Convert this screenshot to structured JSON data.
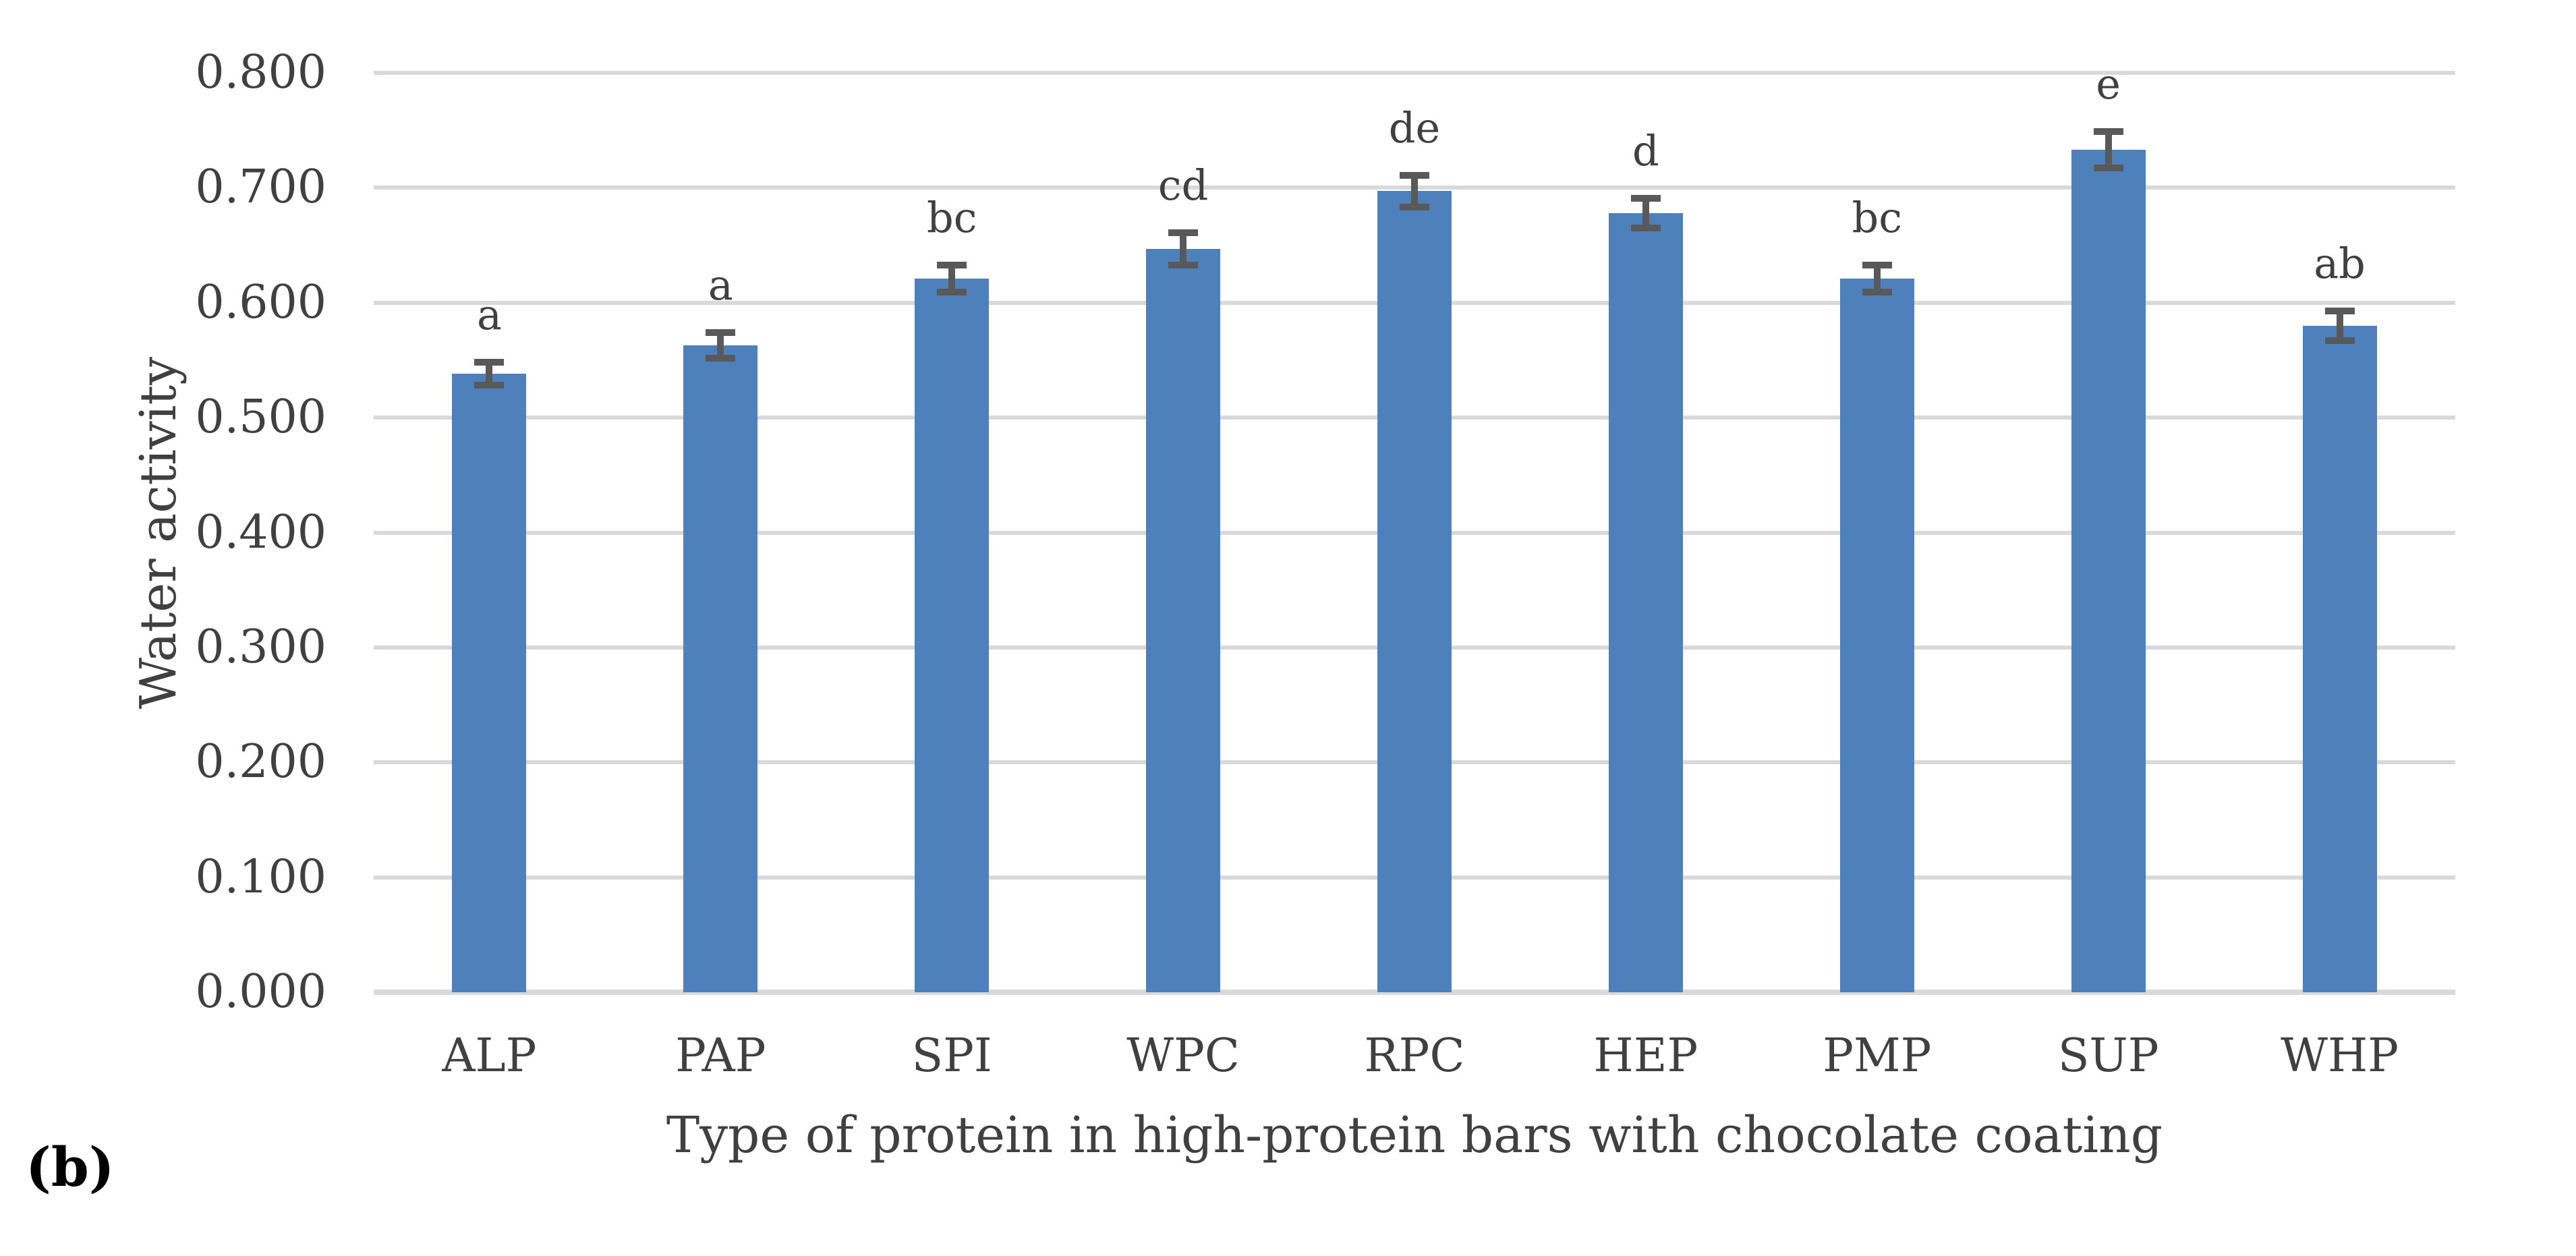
{
  "figure_label": "(b)",
  "chart_data": {
    "type": "bar",
    "title": "",
    "xlabel": "Type of protein in high-protein bars with chocolate coating",
    "ylabel": "Water activity",
    "ylim": [
      0,
      0.8
    ],
    "ytick_step": 0.1,
    "yticks": [
      "0.800",
      "0.700",
      "0.600",
      "0.500",
      "0.400",
      "0.300",
      "0.200",
      "0.100",
      "0.000"
    ],
    "categories": [
      "ALP",
      "PAP",
      "SPI",
      "WPC",
      "RPC",
      "HEP",
      "PMP",
      "SUP",
      "WHP"
    ],
    "values": [
      0.538,
      0.563,
      0.621,
      0.647,
      0.697,
      0.678,
      0.621,
      0.733,
      0.58
    ],
    "error_bars": [
      0.01,
      0.011,
      0.012,
      0.014,
      0.014,
      0.013,
      0.012,
      0.016,
      0.013
    ],
    "significance_letters": [
      "a",
      "a",
      "bc",
      "cd",
      "de",
      "d",
      "bc",
      "e",
      "ab"
    ],
    "grid": true,
    "legend": false,
    "colors": {
      "bar": "#4E80BC",
      "error_bar": "#595959",
      "gridline": "#D9D9D9",
      "text": "#404040"
    }
  }
}
